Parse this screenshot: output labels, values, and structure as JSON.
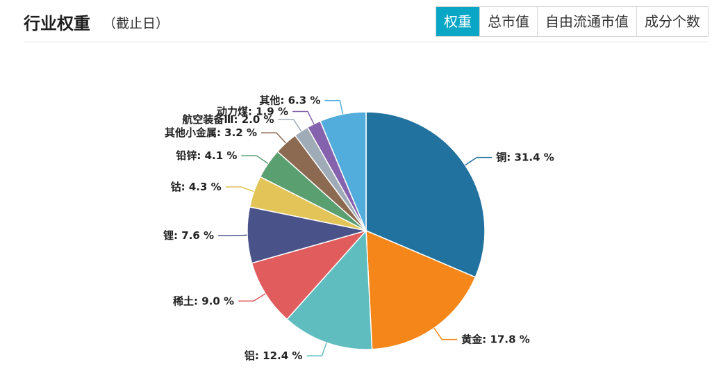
{
  "header": {
    "title": "行业权重",
    "subtitle": "（截止日）",
    "tabs": [
      {
        "label": "权重",
        "active": true
      },
      {
        "label": "总市值",
        "active": false
      },
      {
        "label": "自由流通市值",
        "active": false
      },
      {
        "label": "成分个数",
        "active": false
      }
    ]
  },
  "chart_data": {
    "type": "pie",
    "unit": "%",
    "slices": [
      {
        "label": "铜",
        "value": 31.4,
        "color": "#22729f"
      },
      {
        "label": "黄金",
        "value": 17.8,
        "color": "#f5871a"
      },
      {
        "label": "铝",
        "value": 12.4,
        "color": "#5fbdbf"
      },
      {
        "label": "稀土",
        "value": 9.0,
        "color": "#e05c5d"
      },
      {
        "label": "锂",
        "value": 7.6,
        "color": "#4a5389"
      },
      {
        "label": "钴",
        "value": 4.3,
        "color": "#e3c458"
      },
      {
        "label": "铅锌",
        "value": 4.1,
        "color": "#5a9f70"
      },
      {
        "label": "其他小金属",
        "value": 3.2,
        "color": "#8c6a52"
      },
      {
        "label": "航空装备Ⅲ",
        "value": 2.0,
        "color": "#9fabb6"
      },
      {
        "label": "动力煤",
        "value": 1.9,
        "color": "#8562ad"
      },
      {
        "label": "其他",
        "value": 6.3,
        "color": "#52addd"
      }
    ]
  }
}
